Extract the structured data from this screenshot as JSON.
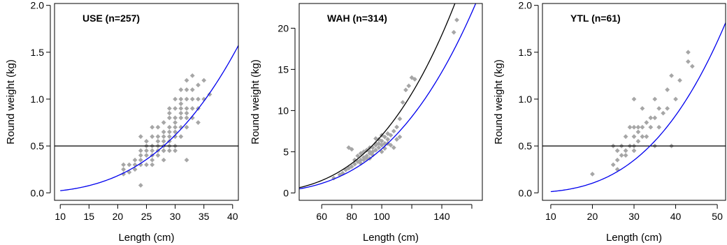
{
  "colors": {
    "points": "#a6a6a6",
    "fit_curve": "#0000ee",
    "ref_curve": "#000000",
    "ref_line": "#000000"
  },
  "chart_data": [
    {
      "type": "scatter",
      "title": "USE (n=257)",
      "xlabel": "Length (cm)",
      "ylabel": "Round weight (kg)",
      "xlim": [
        9,
        41
      ],
      "ylim": [
        -0.08,
        2.02
      ],
      "xticks": [
        10,
        15,
        20,
        25,
        30,
        35,
        40
      ],
      "yticks": [
        0.0,
        0.5,
        1.0,
        1.5,
        2.0
      ],
      "ytick_labels": [
        "0.0",
        "0.5",
        "1.0",
        "1.5",
        "2.0"
      ],
      "hline": 0.5,
      "curves": [
        {
          "name": "fit",
          "color": "#0000ee",
          "a": 2.28e-05,
          "b": 3.0,
          "x_range": [
            10,
            41
          ]
        }
      ],
      "points": [
        [
          21,
          0.2
        ],
        [
          21,
          0.25
        ],
        [
          21,
          0.3
        ],
        [
          22,
          0.22
        ],
        [
          22,
          0.3
        ],
        [
          23,
          0.25
        ],
        [
          23,
          0.3
        ],
        [
          23,
          0.35
        ],
        [
          24,
          0.3
        ],
        [
          24,
          0.35
        ],
        [
          24,
          0.4
        ],
        [
          24,
          0.45
        ],
        [
          24,
          0.6
        ],
        [
          24,
          0.08
        ],
        [
          25,
          0.3
        ],
        [
          25,
          0.4
        ],
        [
          25,
          0.45
        ],
        [
          25,
          0.5
        ],
        [
          25,
          0.55
        ],
        [
          26,
          0.35
        ],
        [
          26,
          0.4
        ],
        [
          26,
          0.45
        ],
        [
          26,
          0.5
        ],
        [
          26,
          0.6
        ],
        [
          26,
          0.7
        ],
        [
          27,
          0.4
        ],
        [
          27,
          0.45
        ],
        [
          27,
          0.5
        ],
        [
          27,
          0.55
        ],
        [
          27,
          0.6
        ],
        [
          27,
          0.7
        ],
        [
          28,
          0.35
        ],
        [
          28,
          0.45
        ],
        [
          28,
          0.5
        ],
        [
          28,
          0.55
        ],
        [
          28,
          0.6
        ],
        [
          28,
          0.65
        ],
        [
          28,
          0.75
        ],
        [
          29,
          0.45
        ],
        [
          29,
          0.5
        ],
        [
          29,
          0.55
        ],
        [
          29,
          0.6
        ],
        [
          29,
          0.65
        ],
        [
          29,
          0.7
        ],
        [
          29,
          0.8
        ],
        [
          29,
          0.9
        ],
        [
          30,
          0.5
        ],
        [
          30,
          0.6
        ],
        [
          30,
          0.65
        ],
        [
          30,
          0.7
        ],
        [
          30,
          0.75
        ],
        [
          30,
          0.8
        ],
        [
          30,
          0.9
        ],
        [
          30,
          1.0
        ],
        [
          31,
          0.6
        ],
        [
          31,
          0.7
        ],
        [
          31,
          0.8
        ],
        [
          31,
          0.85
        ],
        [
          31,
          0.9
        ],
        [
          31,
          1.0
        ],
        [
          31,
          1.1
        ],
        [
          32,
          0.7
        ],
        [
          32,
          0.8
        ],
        [
          32,
          0.85
        ],
        [
          32,
          0.9
        ],
        [
          32,
          1.0
        ],
        [
          32,
          1.1
        ],
        [
          32,
          1.2
        ],
        [
          32,
          0.35
        ],
        [
          33,
          0.8
        ],
        [
          33,
          0.9
        ],
        [
          33,
          1.0
        ],
        [
          33,
          1.1
        ],
        [
          33,
          1.25
        ],
        [
          34,
          0.75
        ],
        [
          34,
          0.9
        ],
        [
          34,
          1.0
        ],
        [
          34,
          1.15
        ],
        [
          35,
          1.0
        ],
        [
          35,
          1.2
        ],
        [
          36,
          1.05
        ],
        [
          28,
          0.45
        ],
        [
          30,
          0.45
        ],
        [
          26,
          0.3
        ],
        [
          31,
          0.95
        ],
        [
          29,
          0.85
        ]
      ]
    },
    {
      "type": "scatter",
      "title": "WAH (n=314)",
      "xlabel": "Length (cm)",
      "ylabel": "Round weight (kg)",
      "xlim": [
        45,
        167
      ],
      "ylim": [
        -0.9,
        23
      ],
      "xticks": [
        60,
        80,
        100,
        120,
        140,
        160
      ],
      "xtick_labels": [
        "60",
        "80",
        "100",
        "",
        "140",
        ""
      ],
      "yticks": [
        0,
        5,
        10,
        15,
        20
      ],
      "ytick_labels": [
        "0",
        "5",
        "10",
        "15",
        "20"
      ],
      "curves": [
        {
          "name": "fit",
          "color": "#0000ee",
          "a": 5.35e-06,
          "b": 3.0,
          "x_range": [
            45,
            167
          ]
        },
        {
          "name": "reference",
          "color": "#000000",
          "a": 6.99e-06,
          "b": 3.0,
          "x_range": [
            45,
            167
          ]
        }
      ],
      "points": [
        [
          68,
          1.8
        ],
        [
          72,
          2.2
        ],
        [
          74,
          2.4
        ],
        [
          76,
          2.8
        ],
        [
          78,
          3.0
        ],
        [
          78,
          5.5
        ],
        [
          80,
          3.2
        ],
        [
          80,
          5.3
        ],
        [
          82,
          3.5
        ],
        [
          82,
          4.0
        ],
        [
          84,
          3.8
        ],
        [
          84,
          4.5
        ],
        [
          86,
          4.0
        ],
        [
          86,
          4.8
        ],
        [
          88,
          4.3
        ],
        [
          88,
          4.0
        ],
        [
          88,
          5.0
        ],
        [
          90,
          4.5
        ],
        [
          90,
          4.2
        ],
        [
          90,
          5.2
        ],
        [
          92,
          4.8
        ],
        [
          92,
          5.0
        ],
        [
          92,
          5.5
        ],
        [
          94,
          5.0
        ],
        [
          94,
          5.5
        ],
        [
          94,
          4.6
        ],
        [
          96,
          5.2
        ],
        [
          96,
          5.8
        ],
        [
          96,
          6.0
        ],
        [
          98,
          5.5
        ],
        [
          98,
          6.0
        ],
        [
          98,
          6.5
        ],
        [
          100,
          5.8
        ],
        [
          100,
          6.3
        ],
        [
          100,
          7.0
        ],
        [
          102,
          6.0
        ],
        [
          102,
          6.8
        ],
        [
          104,
          6.5
        ],
        [
          104,
          7.2
        ],
        [
          106,
          7.0
        ],
        [
          108,
          7.5
        ],
        [
          110,
          8.0
        ],
        [
          112,
          9.0
        ],
        [
          114,
          11.0
        ],
        [
          116,
          12.5
        ],
        [
          118,
          13.0
        ],
        [
          120,
          14.0
        ],
        [
          122,
          13.8
        ],
        [
          148,
          19.5
        ],
        [
          150,
          21.0
        ],
        [
          100,
          5.0
        ],
        [
          96,
          6.6
        ],
        [
          92,
          4.2
        ],
        [
          86,
          3.6
        ],
        [
          104,
          6.0
        ],
        [
          108,
          5.5
        ],
        [
          110,
          6.5
        ],
        [
          112,
          6.8
        ],
        [
          106,
          5.8
        ],
        [
          102,
          5.4
        ]
      ]
    },
    {
      "type": "scatter",
      "title": "YTL (n=61)",
      "xlabel": "Length (cm)",
      "ylabel": "Round weight (kg)",
      "xlim": [
        8,
        52
      ],
      "ylim": [
        -0.08,
        2.02
      ],
      "xticks": [
        10,
        20,
        30,
        40,
        50
      ],
      "yticks": [
        0.0,
        0.5,
        1.0,
        1.5,
        2.0
      ],
      "ytick_labels": [
        "0.0",
        "0.5",
        "1.0",
        "1.5",
        "2.0"
      ],
      "hline": 0.5,
      "curves": [
        {
          "name": "fit",
          "color": "#0000ee",
          "a": 1.29e-05,
          "b": 3.0,
          "x_range": [
            10,
            52
          ]
        }
      ],
      "points": [
        [
          20,
          0.2
        ],
        [
          25,
          0.3
        ],
        [
          25,
          0.5
        ],
        [
          26,
          0.25
        ],
        [
          26,
          0.35
        ],
        [
          26,
          0.45
        ],
        [
          27,
          0.4
        ],
        [
          27,
          0.5
        ],
        [
          28,
          0.4
        ],
        [
          28,
          0.45
        ],
        [
          28,
          0.6
        ],
        [
          29,
          0.5
        ],
        [
          29,
          0.7
        ],
        [
          30,
          0.45
        ],
        [
          30,
          0.5
        ],
        [
          30,
          0.6
        ],
        [
          30,
          0.7
        ],
        [
          30,
          1.0
        ],
        [
          31,
          0.55
        ],
        [
          31,
          0.65
        ],
        [
          31,
          0.7
        ],
        [
          32,
          0.6
        ],
        [
          32,
          0.7
        ],
        [
          32,
          0.9
        ],
        [
          33,
          0.6
        ],
        [
          33,
          0.75
        ],
        [
          34,
          0.7
        ],
        [
          34,
          0.8
        ],
        [
          35,
          0.5
        ],
        [
          35,
          0.8
        ],
        [
          35,
          1.0
        ],
        [
          36,
          0.7
        ],
        [
          36,
          0.9
        ],
        [
          37,
          0.85
        ],
        [
          38,
          0.9
        ],
        [
          38,
          1.1
        ],
        [
          39,
          0.5
        ],
        [
          39,
          1.25
        ],
        [
          40,
          1.0
        ],
        [
          41,
          1.2
        ],
        [
          43,
          1.4
        ],
        [
          43,
          1.5
        ],
        [
          44,
          1.35
        ]
      ]
    }
  ]
}
